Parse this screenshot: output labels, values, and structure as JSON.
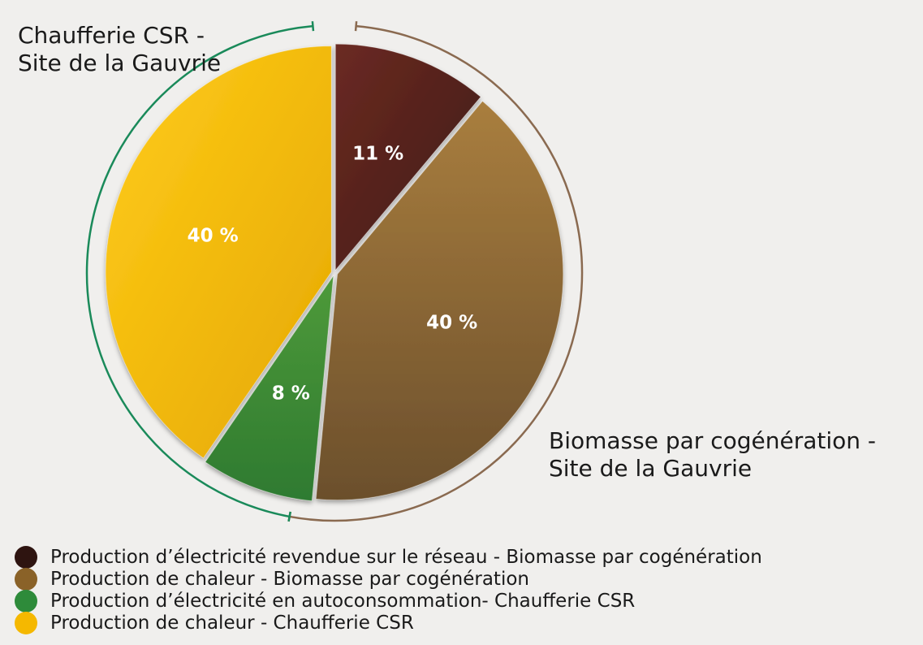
{
  "chart_data": {
    "type": "pie",
    "slices": [
      {
        "label": "Production d’électricité revendue sur le réseau - Biomasse par cogénération",
        "value": 11,
        "value_label": "11 %",
        "color": "#3a1a14"
      },
      {
        "label": "Production de chaleur - Biomasse par cogénération",
        "value": 40,
        "value_label": "40 %",
        "color": "#8a6228"
      },
      {
        "label": "Production d’électricité en autoconsommation- Chaufferie CSR",
        "value": 8,
        "value_label": "8 %",
        "color": "#2e8b3a"
      },
      {
        "label": "Production de chaleur - Chaufferie CSR",
        "value": 40,
        "value_label": "40 %",
        "color": "#f5b800"
      }
    ],
    "groups": [
      {
        "label": "Chaufferie CSR - Site de la Gauvrie",
        "color": "#1a8a5a"
      },
      {
        "label": "Biomasse par cogénération - Site de la Gauvrie",
        "color": "#8a6a50"
      }
    ],
    "legend_position": "bottom-left"
  }
}
